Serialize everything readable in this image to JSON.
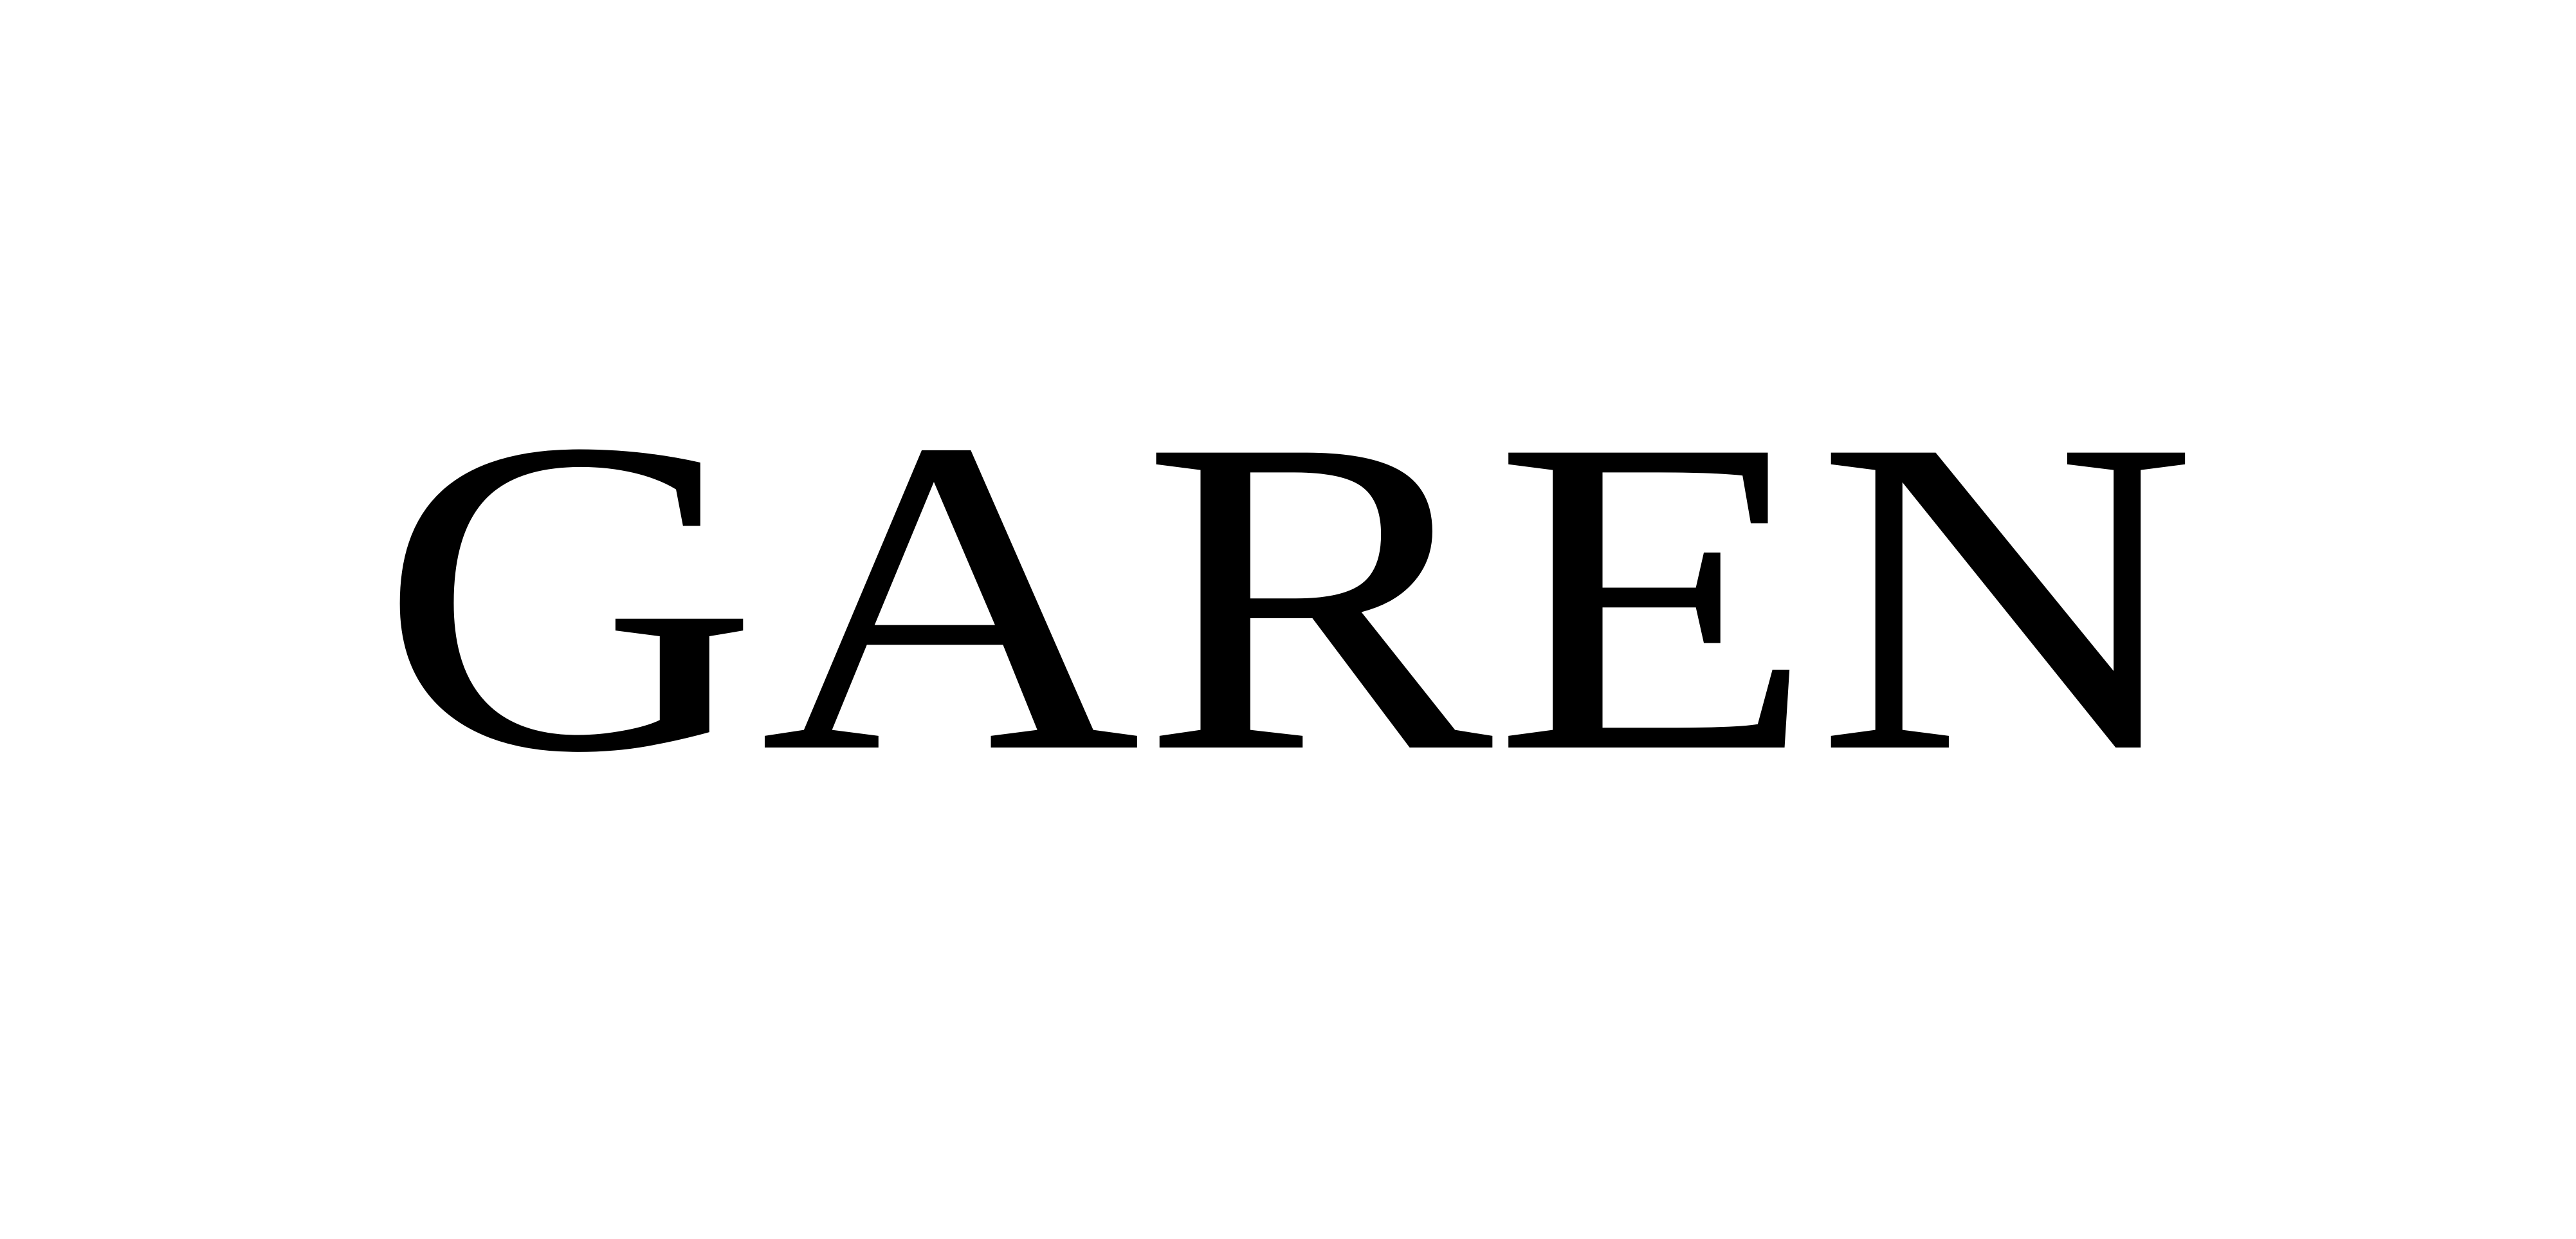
{
  "brand": {
    "wordmark": "GAREN",
    "text_color": "#000000",
    "background_color": "#ffffff"
  }
}
